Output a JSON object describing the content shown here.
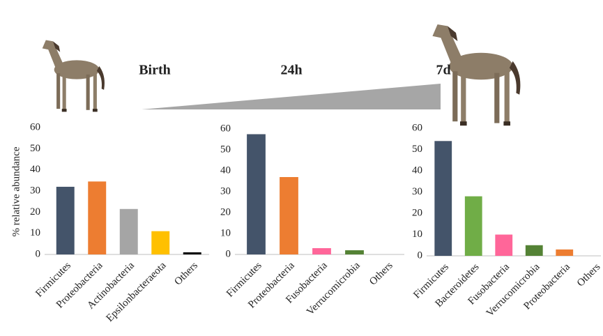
{
  "chart_data": [
    {
      "type": "bar",
      "title": "Birth",
      "y_label": "% relative abundance",
      "categories": [
        "Firmicutes",
        "Proteobacteria",
        "Actinobacteria",
        "Epsilonbacteraeota",
        "Others"
      ],
      "values": [
        32,
        34.5,
        21.5,
        11,
        1
      ],
      "colors": [
        "#44546a",
        "#ed7d31",
        "#a5a5a5",
        "#ffc000",
        "#000000"
      ],
      "ylim": [
        0,
        60
      ],
      "yticks": [
        0,
        10,
        20,
        30,
        40,
        50,
        60
      ]
    },
    {
      "type": "bar",
      "title": "24h",
      "categories": [
        "Firmicutes",
        "Proteobacteria",
        "Fusobacteria",
        "Verrucomicrobia",
        "Others"
      ],
      "values": [
        57.5,
        37,
        3,
        2,
        0
      ],
      "colors": [
        "#44546a",
        "#ed7d31",
        "#ff6699",
        "#548235",
        null
      ],
      "ylim": [
        0,
        60
      ],
      "yticks": [
        0,
        10,
        20,
        30,
        40,
        50,
        60
      ]
    },
    {
      "type": "bar",
      "title": "7d",
      "categories": [
        "Firmicutes",
        "Bacteroidetes",
        "Fusobacteria",
        "Verrucomicrobia",
        "Proteobacteria",
        "Others"
      ],
      "values": [
        54,
        28,
        10,
        5,
        3,
        0
      ],
      "colors": [
        "#44546a",
        "#70ad47",
        "#ff6699",
        "#548235",
        "#ed7d31",
        null
      ],
      "ylim": [
        0,
        60
      ],
      "yticks": [
        0,
        10,
        20,
        30,
        40,
        50,
        60
      ]
    }
  ]
}
